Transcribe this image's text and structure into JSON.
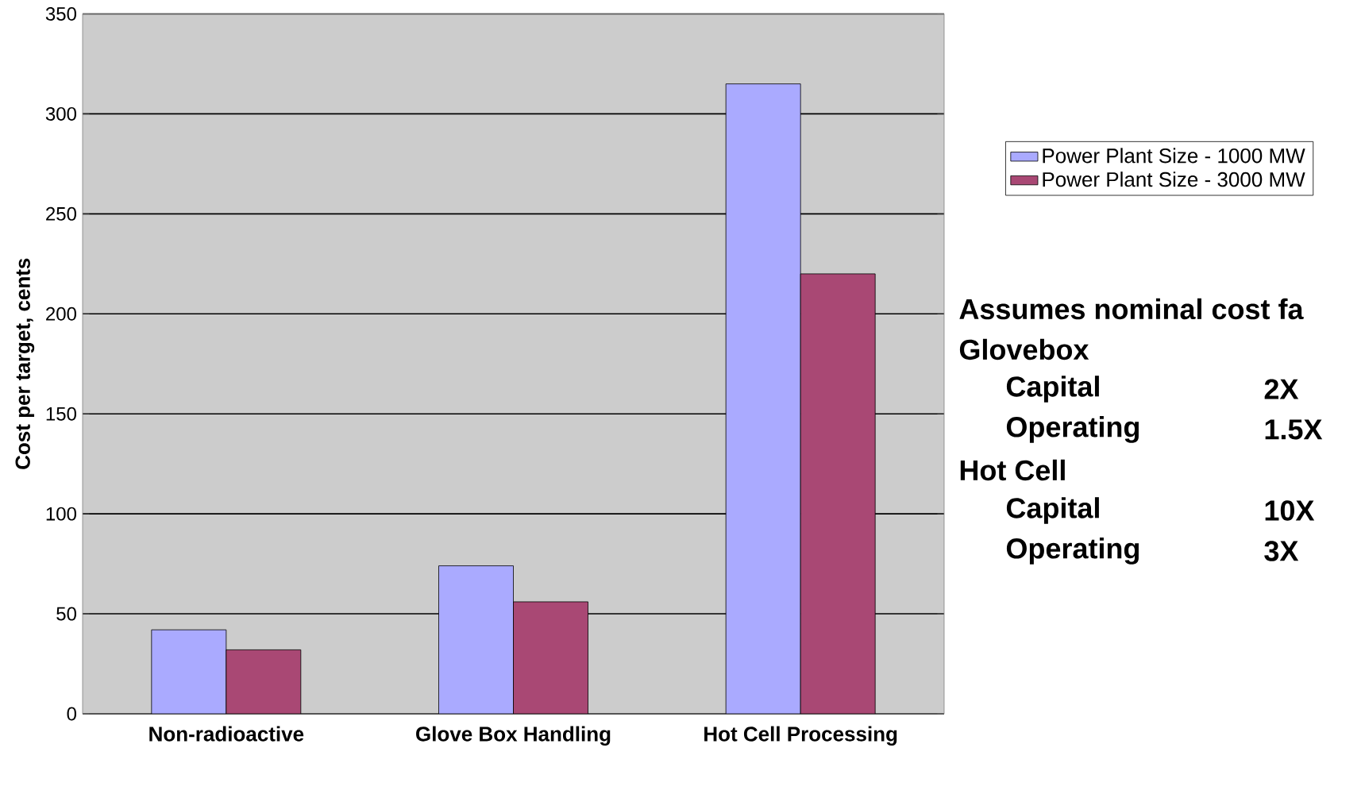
{
  "chart_data": {
    "type": "bar",
    "ylabel": "Cost per target, cents",
    "categories": [
      "Non-radioactive",
      "Glove Box Handling",
      "Hot Cell Processing"
    ],
    "series": [
      {
        "name": "Power Plant Size - 1000 MW",
        "color": "#aaaaff",
        "values": [
          42,
          74,
          315
        ]
      },
      {
        "name": "Power Plant Size - 3000 MW",
        "color": "#a94874",
        "values": [
          32,
          56,
          220
        ]
      }
    ],
    "ylim": [
      0,
      350
    ],
    "yticks": [
      0,
      50,
      100,
      150,
      200,
      250,
      300,
      350
    ],
    "grid": "y",
    "legend": "right",
    "annotations": [
      "Assumes nominal cost fa",
      "Glovebox",
      "Capital",
      "2X",
      "Operating",
      "1.5X",
      "Hot Cell",
      "Capital",
      "10X",
      "Operating",
      "3X"
    ]
  }
}
